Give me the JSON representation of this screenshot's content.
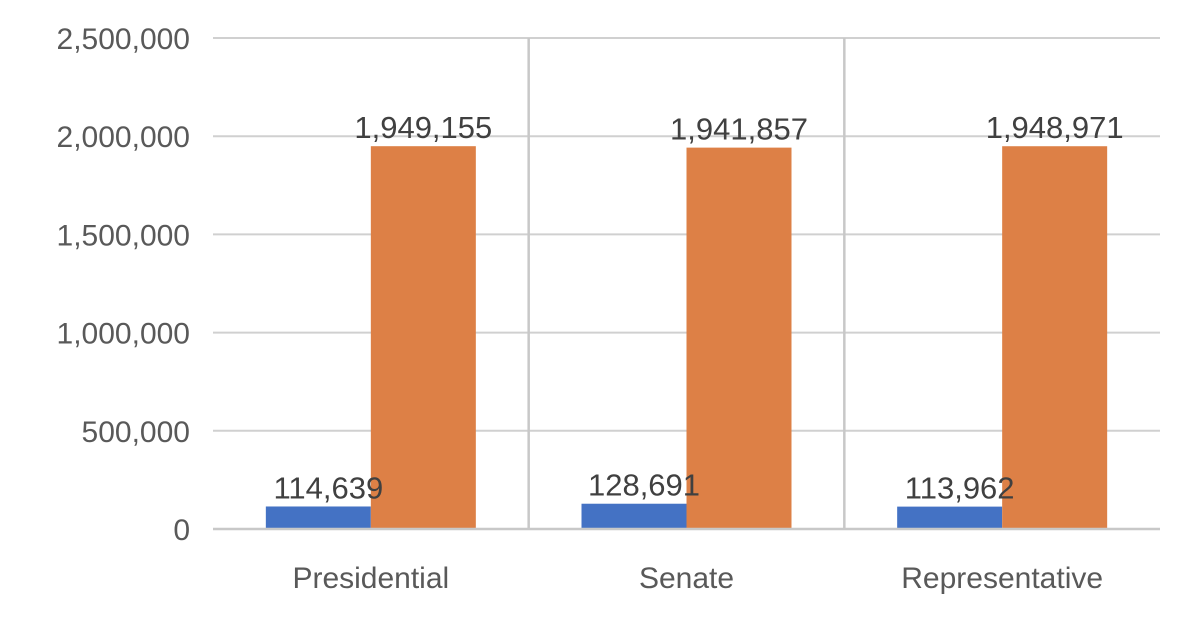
{
  "chart_data": {
    "type": "bar",
    "title": "",
    "xlabel": "",
    "ylabel": "",
    "categories": [
      "Presidential",
      "Senate",
      "Representative"
    ],
    "series": [
      {
        "values": [
          114639,
          128691,
          113962
        ],
        "labels": [
          "114,639",
          "128,691",
          "113,962"
        ],
        "color": "#4472C4"
      },
      {
        "values": [
          1949155,
          1941857,
          1948971
        ],
        "labels": [
          "1,949,155",
          "1,941,857",
          "1,948,971"
        ],
        "color": "#DD8046"
      }
    ],
    "ylim": [
      0,
      2500000
    ],
    "y_ticks": [
      0,
      500000,
      1000000,
      1500000,
      2000000,
      2500000
    ],
    "y_tick_labels": [
      "0",
      "500,000",
      "1,000,000",
      "1,500,000",
      "2,000,000",
      "2,500,000"
    ],
    "grid": true,
    "legend": "none"
  }
}
